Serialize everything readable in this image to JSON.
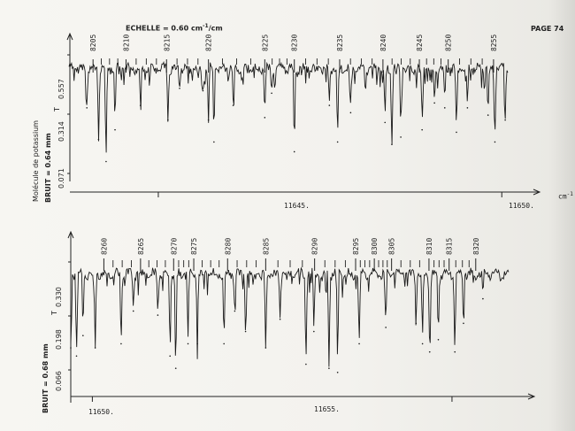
{
  "header": {
    "scale_label": "ECHELLE = 0.60 cm",
    "scale_superscript": "-1",
    "scale_unit": "/cm",
    "page_label": "PAGE 74"
  },
  "side_title": "Molécule de potassium",
  "axis_unit": "cm",
  "axis_unit_sup": "-1",
  "panels": [
    {
      "bruit": "BRUIT = 0.64 mm",
      "scale_t": "T",
      "y_ticks": [
        "0.071",
        "0.314",
        "0.557"
      ],
      "x_ticks": [
        "11645.",
        "11650."
      ],
      "line_labels": [
        "8205",
        "8210",
        "8215",
        "8220",
        "8225",
        "8230",
        "8235",
        "8240",
        "8245",
        "8250",
        "8255"
      ]
    },
    {
      "bruit": "BRUIT = 0.68 mm",
      "scale_t": "T",
      "y_ticks": [
        "0.066",
        "0.198",
        "0.330"
      ],
      "x_ticks": [
        "11650.",
        "11655."
      ],
      "line_labels": [
        "8260",
        "8265",
        "8270",
        "8275",
        "8280",
        "8285",
        "8290",
        "8295",
        "8300",
        "8305",
        "8310",
        "8315",
        "8320"
      ]
    }
  ],
  "chart_data": [
    {
      "type": "line",
      "title": "",
      "xlabel": "cm-1",
      "ylabel": "T",
      "xlim": [
        11643.7,
        11650.1
      ],
      "ylim": [
        0.071,
        0.557
      ],
      "x_ticks": [
        11645,
        11650
      ],
      "y_ticks": [
        0.071,
        0.314,
        0.557
      ],
      "line_positions": [
        {
          "label": "8205",
          "x": 11644.05
        },
        {
          "label": "8210",
          "x": 11644.53
        },
        {
          "label": "8215",
          "x": 11645.12
        },
        {
          "label": "8220",
          "x": 11645.73
        },
        {
          "label": "8225",
          "x": 11646.55
        },
        {
          "label": "8230",
          "x": 11646.98
        },
        {
          "label": "8235",
          "x": 11647.64
        },
        {
          "label": "8240",
          "x": 11648.27
        },
        {
          "label": "8245",
          "x": 11648.8
        },
        {
          "label": "8250",
          "x": 11649.22
        },
        {
          "label": "8255",
          "x": 11649.88
        }
      ],
      "absorption_dips": [
        {
          "x": 11643.96,
          "y": 0.34
        },
        {
          "x": 11644.13,
          "y": 0.21
        },
        {
          "x": 11644.24,
          "y": 0.12
        },
        {
          "x": 11644.37,
          "y": 0.25
        },
        {
          "x": 11644.74,
          "y": 0.35
        },
        {
          "x": 11645.14,
          "y": 0.29
        },
        {
          "x": 11645.31,
          "y": 0.42
        },
        {
          "x": 11645.65,
          "y": 0.41
        },
        {
          "x": 11645.73,
          "y": 0.29
        },
        {
          "x": 11645.81,
          "y": 0.2
        },
        {
          "x": 11646.09,
          "y": 0.35
        },
        {
          "x": 11646.55,
          "y": 0.3
        },
        {
          "x": 11646.65,
          "y": 0.4
        },
        {
          "x": 11646.98,
          "y": 0.16
        },
        {
          "x": 11647.49,
          "y": 0.35
        },
        {
          "x": 11647.61,
          "y": 0.2
        },
        {
          "x": 11647.8,
          "y": 0.32
        },
        {
          "x": 11648.3,
          "y": 0.28
        },
        {
          "x": 11648.4,
          "y": 0.19
        },
        {
          "x": 11648.53,
          "y": 0.22
        },
        {
          "x": 11648.84,
          "y": 0.25
        },
        {
          "x": 11649.02,
          "y": 0.36
        },
        {
          "x": 11649.17,
          "y": 0.34
        },
        {
          "x": 11649.34,
          "y": 0.24
        },
        {
          "x": 11649.5,
          "y": 0.34
        },
        {
          "x": 11649.8,
          "y": 0.31
        },
        {
          "x": 11649.9,
          "y": 0.2
        },
        {
          "x": 11650.05,
          "y": 0.29
        }
      ],
      "baseline": 0.5
    },
    {
      "type": "line",
      "title": "",
      "xlabel": "cm-1",
      "ylabel": "T",
      "xlim": [
        11649.7,
        11655.8
      ],
      "ylim": [
        0.066,
        0.33
      ],
      "x_ticks": [
        11650,
        11655
      ],
      "y_ticks": [
        0.066,
        0.198,
        0.33
      ],
      "line_positions": [
        {
          "label": "8260",
          "x": 11650.16
        },
        {
          "label": "8265",
          "x": 11650.67
        },
        {
          "label": "8270",
          "x": 11651.13
        },
        {
          "label": "8275",
          "x": 11651.41
        },
        {
          "label": "8280",
          "x": 11651.88
        },
        {
          "label": "8285",
          "x": 11652.41
        },
        {
          "label": "8290",
          "x": 11653.09
        },
        {
          "label": "8295",
          "x": 11653.66
        },
        {
          "label": "8300",
          "x": 11653.92
        },
        {
          "label": "8305",
          "x": 11654.16
        },
        {
          "label": "8310",
          "x": 11654.68
        },
        {
          "label": "8315",
          "x": 11654.96
        },
        {
          "label": "8320",
          "x": 11655.33
        }
      ],
      "absorption_dips": [
        {
          "x": 11649.7,
          "y": 0.12
        },
        {
          "x": 11649.78,
          "y": 0.1
        },
        {
          "x": 11649.87,
          "y": 0.15
        },
        {
          "x": 11650.04,
          "y": 0.12
        },
        {
          "x": 11650.4,
          "y": 0.13
        },
        {
          "x": 11650.57,
          "y": 0.21
        },
        {
          "x": 11650.91,
          "y": 0.2
        },
        {
          "x": 11651.08,
          "y": 0.1
        },
        {
          "x": 11651.16,
          "y": 0.07
        },
        {
          "x": 11651.33,
          "y": 0.13
        },
        {
          "x": 11651.46,
          "y": 0.13
        },
        {
          "x": 11651.83,
          "y": 0.13
        },
        {
          "x": 11651.98,
          "y": 0.21
        },
        {
          "x": 11652.13,
          "y": 0.16
        },
        {
          "x": 11652.41,
          "y": 0.12
        },
        {
          "x": 11652.61,
          "y": 0.19
        },
        {
          "x": 11652.97,
          "y": 0.08
        },
        {
          "x": 11653.08,
          "y": 0.16
        },
        {
          "x": 11653.29,
          "y": 0.07
        },
        {
          "x": 11653.41,
          "y": 0.06
        },
        {
          "x": 11653.71,
          "y": 0.13
        },
        {
          "x": 11654.08,
          "y": 0.17
        },
        {
          "x": 11654.5,
          "y": 0.18
        },
        {
          "x": 11654.59,
          "y": 0.13
        },
        {
          "x": 11654.69,
          "y": 0.11
        },
        {
          "x": 11654.81,
          "y": 0.14
        },
        {
          "x": 11655.04,
          "y": 0.11
        },
        {
          "x": 11655.16,
          "y": 0.18
        },
        {
          "x": 11655.43,
          "y": 0.24
        }
      ],
      "baseline": 0.3
    }
  ]
}
